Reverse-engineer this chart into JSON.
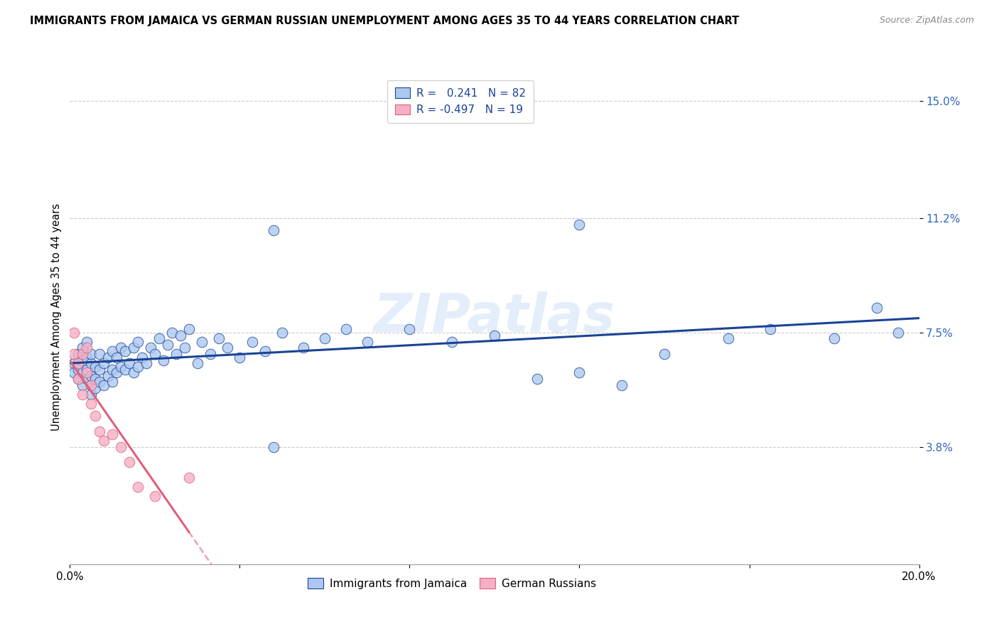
{
  "title": "IMMIGRANTS FROM JAMAICA VS GERMAN RUSSIAN UNEMPLOYMENT AMONG AGES 35 TO 44 YEARS CORRELATION CHART",
  "source": "Source: ZipAtlas.com",
  "ylabel": "Unemployment Among Ages 35 to 44 years",
  "xlim": [
    0.0,
    0.2
  ],
  "ylim": [
    0.0,
    0.16
  ],
  "ytick_positions": [
    0.038,
    0.075,
    0.112,
    0.15
  ],
  "ytick_labels": [
    "3.8%",
    "7.5%",
    "11.2%",
    "15.0%"
  ],
  "r_jamaica": 0.241,
  "n_jamaica": 82,
  "r_german": -0.497,
  "n_german": 19,
  "jamaica_color": "#adc8f0",
  "german_color": "#f5b0c5",
  "jamaica_line_color": "#1a4494",
  "german_line_color": "#e0607a",
  "watermark": "ZIPatlas",
  "jamaica_x": [
    0.001,
    0.001,
    0.002,
    0.002,
    0.002,
    0.003,
    0.003,
    0.003,
    0.003,
    0.004,
    0.004,
    0.004,
    0.004,
    0.005,
    0.005,
    0.005,
    0.005,
    0.005,
    0.006,
    0.006,
    0.006,
    0.007,
    0.007,
    0.007,
    0.008,
    0.008,
    0.009,
    0.009,
    0.01,
    0.01,
    0.01,
    0.011,
    0.011,
    0.012,
    0.012,
    0.013,
    0.013,
    0.014,
    0.015,
    0.015,
    0.016,
    0.016,
    0.017,
    0.018,
    0.019,
    0.02,
    0.021,
    0.022,
    0.023,
    0.024,
    0.025,
    0.026,
    0.027,
    0.028,
    0.03,
    0.031,
    0.033,
    0.035,
    0.037,
    0.04,
    0.043,
    0.046,
    0.05,
    0.055,
    0.06,
    0.065,
    0.07,
    0.08,
    0.09,
    0.1,
    0.11,
    0.12,
    0.13,
    0.14,
    0.155,
    0.165,
    0.18,
    0.19,
    0.195,
    0.048,
    0.048,
    0.12
  ],
  "jamaica_y": [
    0.065,
    0.062,
    0.06,
    0.063,
    0.068,
    0.058,
    0.062,
    0.066,
    0.07,
    0.06,
    0.063,
    0.067,
    0.072,
    0.055,
    0.058,
    0.061,
    0.065,
    0.068,
    0.057,
    0.06,
    0.064,
    0.059,
    0.063,
    0.068,
    0.058,
    0.065,
    0.061,
    0.067,
    0.059,
    0.063,
    0.069,
    0.062,
    0.067,
    0.064,
    0.07,
    0.063,
    0.069,
    0.065,
    0.062,
    0.07,
    0.064,
    0.072,
    0.067,
    0.065,
    0.07,
    0.068,
    0.073,
    0.066,
    0.071,
    0.075,
    0.068,
    0.074,
    0.07,
    0.076,
    0.065,
    0.072,
    0.068,
    0.073,
    0.07,
    0.067,
    0.072,
    0.069,
    0.075,
    0.07,
    0.073,
    0.076,
    0.072,
    0.076,
    0.072,
    0.074,
    0.06,
    0.062,
    0.058,
    0.068,
    0.073,
    0.076,
    0.073,
    0.083,
    0.075,
    0.038,
    0.108,
    0.11
  ],
  "german_x": [
    0.001,
    0.001,
    0.002,
    0.002,
    0.003,
    0.003,
    0.004,
    0.004,
    0.005,
    0.005,
    0.006,
    0.007,
    0.008,
    0.01,
    0.012,
    0.014,
    0.016,
    0.02,
    0.028
  ],
  "german_y": [
    0.075,
    0.068,
    0.065,
    0.06,
    0.068,
    0.055,
    0.062,
    0.07,
    0.058,
    0.052,
    0.048,
    0.043,
    0.04,
    0.042,
    0.038,
    0.033,
    0.025,
    0.022,
    0.028
  ],
  "legend_r1_text": "R = ",
  "legend_r1_val": " 0.241",
  "legend_n1_text": "N = ",
  "legend_n1_val": "82",
  "legend_r2_text": "R = ",
  "legend_r2_val": "-0.497",
  "legend_n2_text": "N = ",
  "legend_n2_val": "19"
}
